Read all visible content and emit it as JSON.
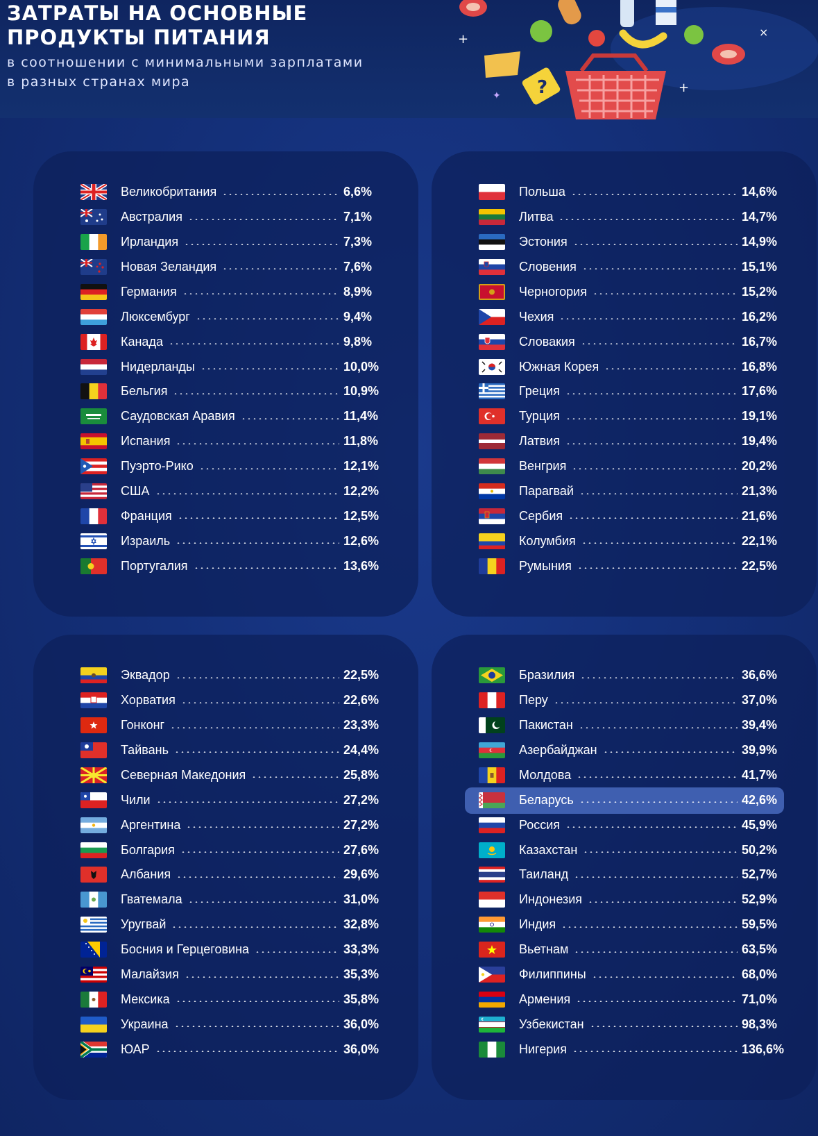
{
  "header": {
    "title": "ЗАТРАТЫ НА ОСНОВНЫЕ\nПРОДУКТЫ ПИТАНИЯ",
    "subtitle": "в соотношении с минимальными зарплатами\nв разных странах мира"
  },
  "colors": {
    "background": "#14307a",
    "panel": "#0d205a",
    "highlight": "#3f5fb0"
  },
  "chart_data": {
    "type": "table",
    "title": "ЗАТРАТЫ НА ОСНОВНЫЕ ПРОДУКТЫ ПИТАНИЯ",
    "subtitle": "в соотношении с минимальными зарплатами в разных странах мира",
    "highlighted": "Беларусь",
    "panels": [
      {
        "rows": [
          {
            "country": "Великобритания",
            "value": "6,6%",
            "flag": "uk"
          },
          {
            "country": "Австралия",
            "value": "7,1%",
            "flag": "au"
          },
          {
            "country": "Ирландия",
            "value": "7,3%",
            "flag": "ie"
          },
          {
            "country": "Новая Зеландия",
            "value": "7,6%",
            "flag": "nz"
          },
          {
            "country": "Германия",
            "value": "8,9%",
            "flag": "de"
          },
          {
            "country": "Люксембург",
            "value": "9,4%",
            "flag": "lu"
          },
          {
            "country": "Канада",
            "value": "9,8%",
            "flag": "ca"
          },
          {
            "country": "Нидерланды",
            "value": "10,0%",
            "flag": "nl"
          },
          {
            "country": "Бельгия",
            "value": "10,9%",
            "flag": "be"
          },
          {
            "country": "Саудовская Аравия",
            "value": "11,4%",
            "flag": "sa"
          },
          {
            "country": "Испания",
            "value": "11,8%",
            "flag": "es"
          },
          {
            "country": "Пуэрто-Рико",
            "value": "12,1%",
            "flag": "pr"
          },
          {
            "country": "США",
            "value": "12,2%",
            "flag": "us"
          },
          {
            "country": "Франция",
            "value": "12,5%",
            "flag": "fr"
          },
          {
            "country": "Израиль",
            "value": "12,6%",
            "flag": "il"
          },
          {
            "country": "Португалия",
            "value": "13,6%",
            "flag": "pt"
          }
        ]
      },
      {
        "rows": [
          {
            "country": "Польша",
            "value": "14,6%",
            "flag": "pl"
          },
          {
            "country": "Литва",
            "value": "14,7%",
            "flag": "lt"
          },
          {
            "country": "Эстония",
            "value": "14,9%",
            "flag": "ee"
          },
          {
            "country": "Словения",
            "value": "15,1%",
            "flag": "si"
          },
          {
            "country": "Черногория",
            "value": "15,2%",
            "flag": "me"
          },
          {
            "country": "Чехия",
            "value": "16,2%",
            "flag": "cz"
          },
          {
            "country": "Словакия",
            "value": "16,7%",
            "flag": "sk"
          },
          {
            "country": "Южная Корея",
            "value": "16,8%",
            "flag": "kr"
          },
          {
            "country": "Греция",
            "value": "17,6%",
            "flag": "gr"
          },
          {
            "country": "Турция",
            "value": "19,1%",
            "flag": "tr"
          },
          {
            "country": "Латвия",
            "value": "19,4%",
            "flag": "lv"
          },
          {
            "country": "Венгрия",
            "value": "20,2%",
            "flag": "hu"
          },
          {
            "country": "Парагвай",
            "value": "21,3%",
            "flag": "py"
          },
          {
            "country": "Сербия",
            "value": "21,6%",
            "flag": "rs"
          },
          {
            "country": "Колумбия",
            "value": "22,1%",
            "flag": "co"
          },
          {
            "country": "Румыния",
            "value": "22,5%",
            "flag": "ro"
          }
        ]
      },
      {
        "rows": [
          {
            "country": "Эквадор",
            "value": "22,5%",
            "flag": "ec"
          },
          {
            "country": "Хорватия",
            "value": "22,6%",
            "flag": "hr"
          },
          {
            "country": "Гонконг",
            "value": "23,3%",
            "flag": "hk"
          },
          {
            "country": "Тайвань",
            "value": "24,4%",
            "flag": "tw"
          },
          {
            "country": "Северная Македония",
            "value": "25,8%",
            "flag": "mk"
          },
          {
            "country": "Чили",
            "value": "27,2%",
            "flag": "cl"
          },
          {
            "country": "Аргентина",
            "value": "27,2%",
            "flag": "ar"
          },
          {
            "country": "Болгария",
            "value": "27,6%",
            "flag": "bg"
          },
          {
            "country": "Албания",
            "value": "29,6%",
            "flag": "al"
          },
          {
            "country": "Гватемала",
            "value": "31,0%",
            "flag": "gt"
          },
          {
            "country": "Уругвай",
            "value": "32,8%",
            "flag": "uy"
          },
          {
            "country": "Босния и Герцеговина",
            "value": "33,3%",
            "flag": "ba"
          },
          {
            "country": "Малайзия",
            "value": "35,3%",
            "flag": "my"
          },
          {
            "country": "Мексика",
            "value": "35,8%",
            "flag": "mx"
          },
          {
            "country": "Украина",
            "value": "36,0%",
            "flag": "ua"
          },
          {
            "country": "ЮАР",
            "value": "36,0%",
            "flag": "za"
          }
        ]
      },
      {
        "rows": [
          {
            "country": "Бразилия",
            "value": "36,6%",
            "flag": "br"
          },
          {
            "country": "Перу",
            "value": "37,0%",
            "flag": "pe"
          },
          {
            "country": "Пакистан",
            "value": "39,4%",
            "flag": "pk"
          },
          {
            "country": "Азербайджан",
            "value": "39,9%",
            "flag": "az"
          },
          {
            "country": "Молдова",
            "value": "41,7%",
            "flag": "md"
          },
          {
            "country": "Беларусь",
            "value": "42,6%",
            "flag": "by"
          },
          {
            "country": "Россия",
            "value": "45,9%",
            "flag": "ru"
          },
          {
            "country": "Казахстан",
            "value": "50,2%",
            "flag": "kz"
          },
          {
            "country": "Таиланд",
            "value": "52,7%",
            "flag": "th"
          },
          {
            "country": "Индонезия",
            "value": "52,9%",
            "flag": "id"
          },
          {
            "country": "Индия",
            "value": "59,5%",
            "flag": "in"
          },
          {
            "country": "Вьетнам",
            "value": "63,5%",
            "flag": "vn"
          },
          {
            "country": "Филиппины",
            "value": "68,0%",
            "flag": "ph"
          },
          {
            "country": "Армения",
            "value": "71,0%",
            "flag": "am"
          },
          {
            "country": "Узбекистан",
            "value": "98,3%",
            "flag": "uz"
          },
          {
            "country": "Нигерия",
            "value": "136,6%",
            "flag": "ng"
          }
        ]
      }
    ]
  }
}
